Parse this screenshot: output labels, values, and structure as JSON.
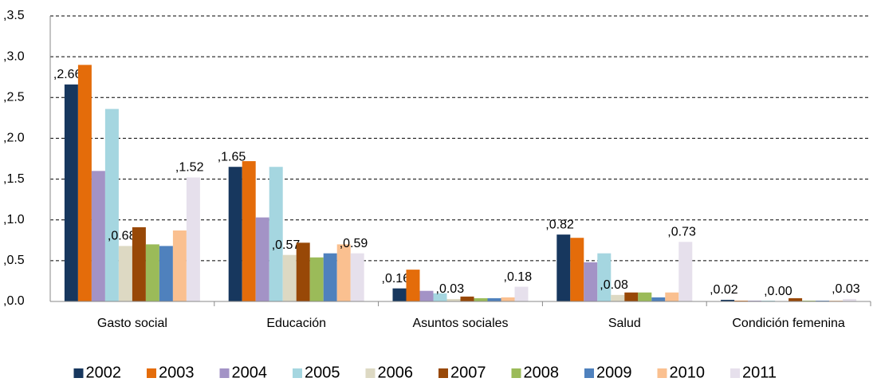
{
  "chart_data": {
    "type": "bar",
    "categories": [
      "Gasto social",
      "Educación",
      "Asuntos sociales",
      "Salud",
      "Condición femenina"
    ],
    "series": [
      {
        "name": "2002",
        "color": "#17375e",
        "values": [
          2.66,
          1.65,
          0.16,
          0.82,
          0.02
        ],
        "value_labels": [
          ",2.66",
          ",1.65",
          ",0.16",
          ",0.82",
          ",0.02"
        ]
      },
      {
        "name": "2003",
        "color": "#e46c0a",
        "values": [
          2.9,
          1.72,
          0.39,
          0.78,
          0.01
        ]
      },
      {
        "name": "2004",
        "color": "#a393c6",
        "values": [
          1.6,
          1.03,
          0.13,
          0.48,
          0.01
        ]
      },
      {
        "name": "2005",
        "color": "#a5d6e0",
        "values": [
          2.36,
          1.65,
          0.1,
          0.59,
          0.01
        ]
      },
      {
        "name": "2006",
        "color": "#ddd9c3",
        "values": [
          0.68,
          0.57,
          0.03,
          0.08,
          0.0
        ],
        "value_labels": [
          ",0.68",
          ",0.57",
          ",0.03",
          ",0.08",
          ",0.00"
        ]
      },
      {
        "name": "2007",
        "color": "#984807",
        "values": [
          0.91,
          0.72,
          0.06,
          0.11,
          0.04
        ]
      },
      {
        "name": "2008",
        "color": "#9bbb59",
        "values": [
          0.7,
          0.54,
          0.04,
          0.11,
          0.01
        ]
      },
      {
        "name": "2009",
        "color": "#4f81bd",
        "values": [
          0.68,
          0.59,
          0.04,
          0.05,
          0.01
        ]
      },
      {
        "name": "2010",
        "color": "#fac090",
        "values": [
          0.87,
          0.7,
          0.05,
          0.11,
          0.01
        ]
      },
      {
        "name": "2011",
        "color": "#e6e0ec",
        "values": [
          1.52,
          0.59,
          0.18,
          0.73,
          0.03
        ],
        "value_labels": [
          ",1.52",
          ",0.59",
          ",0.18",
          ",0.73",
          ",0.03"
        ]
      }
    ],
    "ylim": [
      0,
      3.5
    ],
    "yticks": [
      {
        "value": 0,
        "label": ",0.0"
      },
      {
        "value": 0.5,
        "label": ",0.5"
      },
      {
        "value": 1,
        "label": ",1.0"
      },
      {
        "value": 1.5,
        "label": ",1.5"
      },
      {
        "value": 2,
        "label": ",2.0"
      },
      {
        "value": 2.5,
        "label": ",2.5"
      },
      {
        "value": 3,
        "label": ",3.0"
      },
      {
        "value": 3.5,
        "label": ",3.5"
      }
    ],
    "grid": true
  }
}
